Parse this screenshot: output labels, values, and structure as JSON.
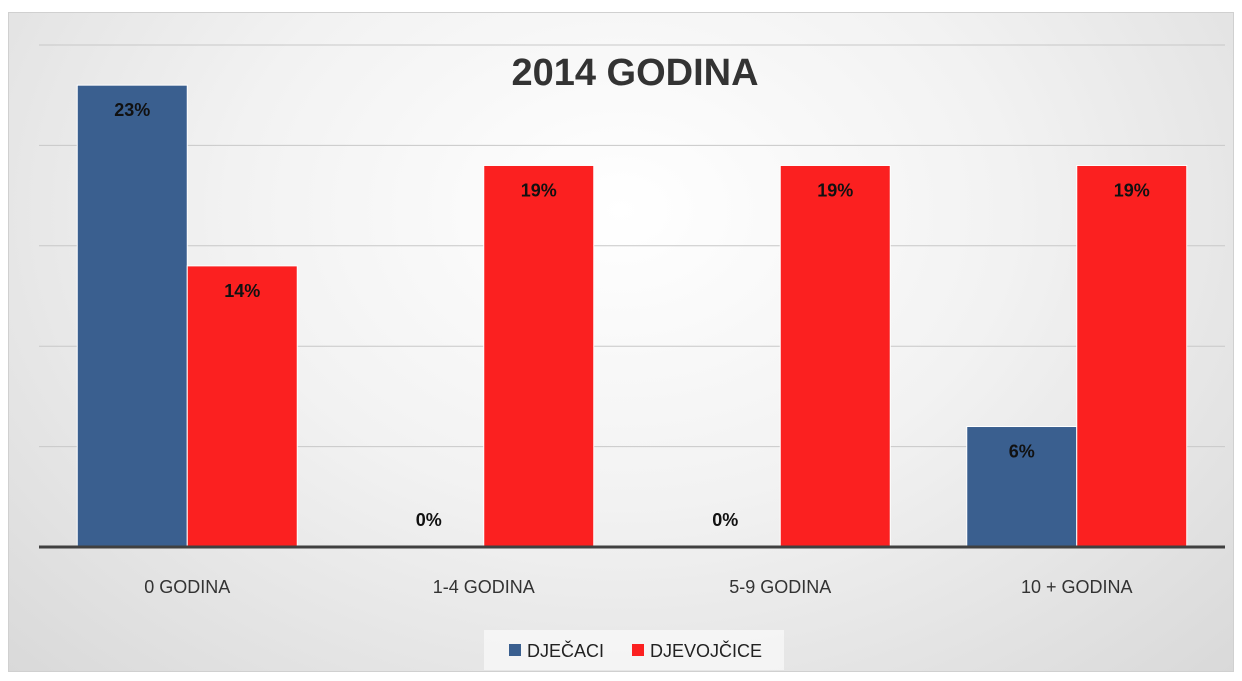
{
  "chart_data": {
    "type": "bar",
    "title": "2014 GODINA",
    "xlabel": "",
    "ylabel": "",
    "categories": [
      "0 GODINA",
      "1-4 GODINA",
      "5-9 GODINA",
      "10 + GODINA"
    ],
    "series": [
      {
        "name": "DJEČACI",
        "color": "#3a5f8f",
        "values": [
          23,
          0,
          0,
          6
        ],
        "labels": [
          "23%",
          "0%",
          "0%",
          "6%"
        ]
      },
      {
        "name": "DJEVOJČICE",
        "color": "#fb2020",
        "values": [
          14,
          19,
          19,
          19
        ],
        "labels": [
          "14%",
          "19%",
          "19%",
          "19%"
        ]
      }
    ],
    "ylim": [
      0,
      25
    ],
    "y_gridlines": [
      5,
      10,
      15,
      20,
      25
    ],
    "grid": true,
    "y_axis_labels_shown": false,
    "legend_position": "bottom"
  }
}
